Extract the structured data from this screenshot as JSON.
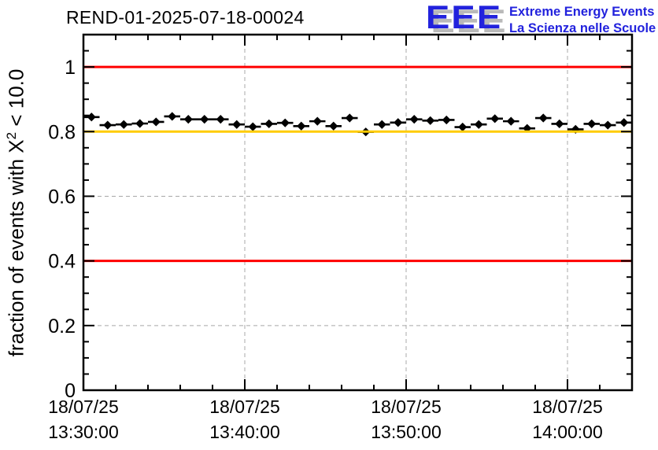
{
  "logo": {
    "acronym": "EEE",
    "line1": "Extreme Energy Events",
    "line2": "La Scienza nelle Scuole",
    "text_color": "#2222dd",
    "shadow_color": "#b9b9b9"
  },
  "y_axis": {
    "label_prefix": "fraction of events with X",
    "label_sup": "2",
    "label_suffix": " < 10.0",
    "tick_labels": [
      "0",
      "0.2",
      "0.4",
      "0.6",
      "0.8",
      "1"
    ],
    "tick_values": [
      0,
      0.2,
      0.4,
      0.6,
      0.8,
      1
    ]
  },
  "x_axis": {
    "major_ticks": [
      {
        "minute": 0,
        "date": "18/07/25",
        "time": "13:30:00"
      },
      {
        "minute": 10,
        "date": "18/07/25",
        "time": "13:40:00"
      },
      {
        "minute": 20,
        "date": "18/07/25",
        "time": "13:50:00"
      },
      {
        "minute": 30,
        "date": "18/07/25",
        "time": "14:00:00"
      }
    ]
  },
  "colors": {
    "grid": "#a8a8a8",
    "frame": "#000000",
    "marker": "#000000",
    "limit_red": "#ff0000",
    "warn_orange": "#ffcc00"
  },
  "chart_data": {
    "type": "scatter",
    "title": "REND-01-2025-07-18-00024",
    "ylabel": "fraction of events with X² < 10.0",
    "xlabel": "",
    "ylim": [
      0,
      1.1
    ],
    "xlim_minutes": [
      0,
      34
    ],
    "x_major_step_minutes": 10,
    "x_minor_step_minutes": 2,
    "y_major_step": 0.2,
    "y_minor_step": 0.05,
    "grid": true,
    "legend": "none",
    "reference_lines": [
      {
        "y": 1.0,
        "color": "#ff0000",
        "role": "upper-limit"
      },
      {
        "y": 0.8,
        "color": "#ffcc00",
        "role": "warning-level"
      },
      {
        "y": 0.4,
        "color": "#ff0000",
        "role": "lower-limit"
      }
    ],
    "series": [
      {
        "name": "fraction of events with chi2 < 10.0",
        "marker": "filled-diamond",
        "color": "#000000",
        "start_time": "13:30:00",
        "bin_width_minutes": 1,
        "x_error_minutes": 0.5,
        "values": [
          0.845,
          0.82,
          0.822,
          0.825,
          0.83,
          0.847,
          0.838,
          0.838,
          0.838,
          0.822,
          0.815,
          0.824,
          0.827,
          0.817,
          0.832,
          0.817,
          0.842,
          0.799,
          0.822,
          0.828,
          0.838,
          0.834,
          0.836,
          0.814,
          0.822,
          0.84,
          0.832,
          0.81,
          0.842,
          0.824,
          0.807,
          0.824,
          0.82,
          0.828
        ]
      }
    ]
  }
}
